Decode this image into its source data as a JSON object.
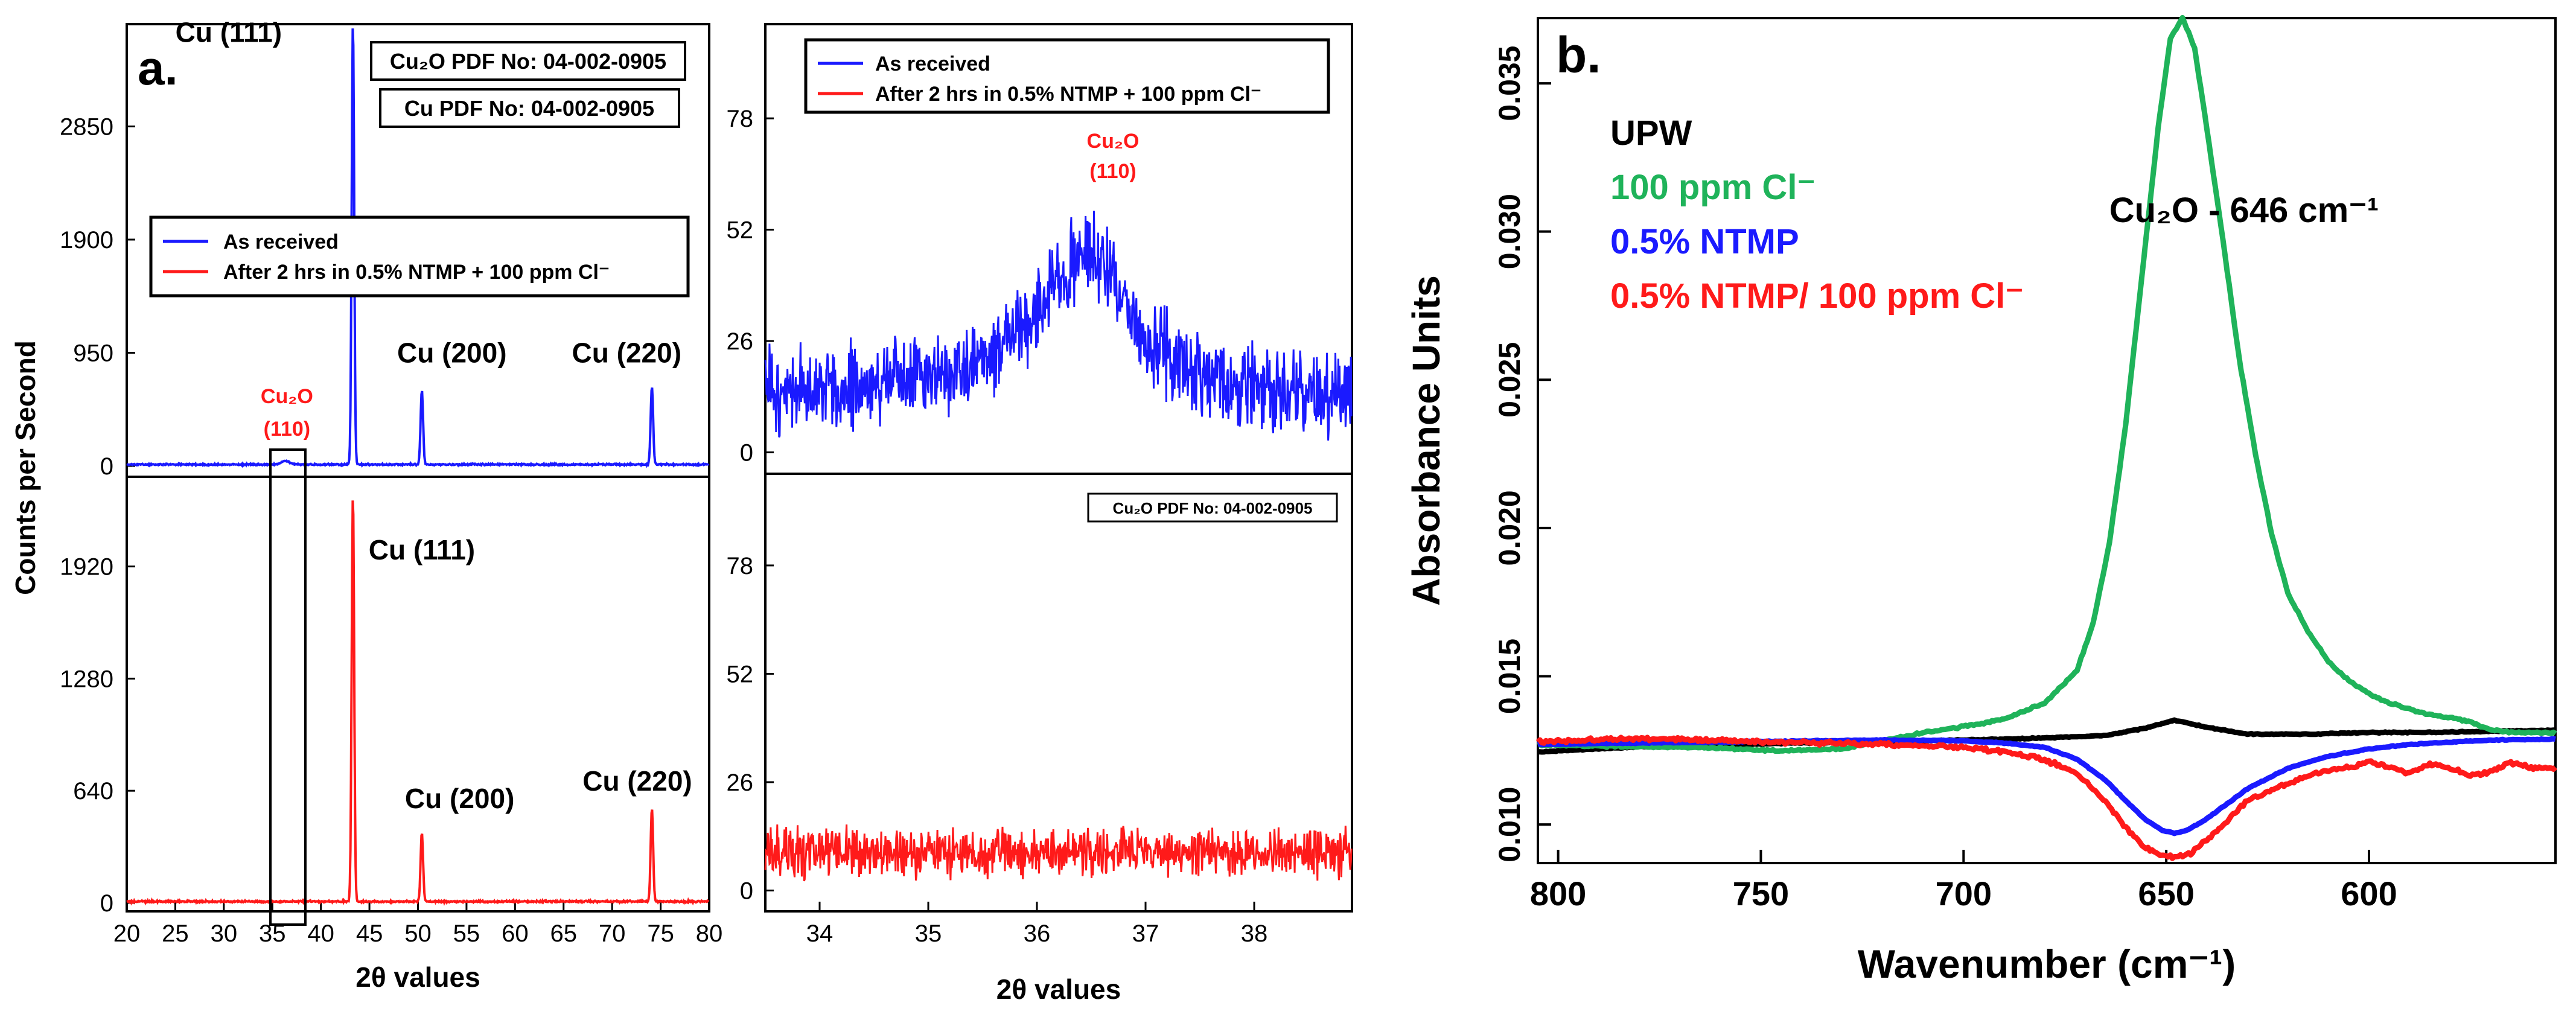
{
  "chart_data": [
    {
      "panel_label": "a.",
      "type": "line",
      "subplot": "full-scan-top",
      "x_range": [
        20,
        80
      ],
      "y_range": [
        0,
        3800
      ],
      "y_ticks": [
        0,
        950,
        1900,
        2850
      ],
      "y_label": "Counts per Second",
      "legend": {
        "position": "center-left",
        "entries": [
          "As received",
          "After 2 hrs in 0.5% NTMP + 100 ppm Cl⁻"
        ]
      },
      "reference_boxes": [
        "Cu₂O PDF No: 04-002-0905",
        "Cu PDF No: 04-002-0905"
      ],
      "annotations": [
        {
          "text": "Cu (111)",
          "x": 30.5,
          "y": 3560
        },
        {
          "text": "Cu (200)",
          "x": 53.5,
          "y": 870
        },
        {
          "text": "Cu (220)",
          "x": 71.5,
          "y": 870
        },
        {
          "text": "Cu₂O",
          "sub": "(110)",
          "x": 36.5,
          "y": 190
        }
      ],
      "series": [
        {
          "name": "As received",
          "color": "#1a1aff",
          "peaks": [
            {
              "x": 43.3,
              "y": 3700
            },
            {
              "x": 50.4,
              "y": 620
            },
            {
              "x": 74.1,
              "y": 650
            },
            {
              "x": 36.4,
              "y": 30
            }
          ]
        }
      ]
    },
    {
      "type": "line",
      "subplot": "full-scan-bottom",
      "x_range": [
        20,
        80
      ],
      "x_ticks": [
        20,
        25,
        30,
        35,
        40,
        45,
        50,
        55,
        60,
        65,
        70,
        75,
        80
      ],
      "x_label": "2θ values",
      "y_range": [
        0,
        2480
      ],
      "y_ticks": [
        0,
        640,
        1280,
        1920
      ],
      "annotations": [
        {
          "text": "Cu (111)",
          "x": 50.4,
          "y": 1960
        },
        {
          "text": "Cu (200)",
          "x": 54.3,
          "y": 540
        },
        {
          "text": "Cu (220)",
          "x": 72.6,
          "y": 640
        }
      ],
      "series": [
        {
          "name": "After 2 hrs in 0.5% NTMP + 100 ppm Cl⁻",
          "color": "#ff1a1a",
          "peaks": [
            {
              "x": 43.3,
              "y": 2320
            },
            {
              "x": 50.4,
              "y": 390
            },
            {
              "x": 74.1,
              "y": 530
            }
          ]
        }
      ]
    },
    {
      "type": "line",
      "subplot": "zoom-top",
      "x_range": [
        33.5,
        38.9
      ],
      "y_range": [
        -5,
        100
      ],
      "y_ticks": [
        0,
        26,
        52,
        78
      ],
      "legend": {
        "position": "top",
        "entries": [
          "As received",
          "After 2 hrs in 0.5% NTMP + 100 ppm Cl⁻"
        ]
      },
      "annotations": [
        {
          "text": "Cu₂O",
          "sub": "(110)",
          "x": 36.7,
          "y": 70
        }
      ],
      "series": [
        {
          "name": "As received",
          "color": "#1a1aff",
          "x": [
            33.5,
            34.0,
            34.5,
            35.0,
            35.5,
            35.9,
            36.2,
            36.4,
            36.6,
            36.8,
            37.0,
            37.5,
            38.0,
            38.5,
            38.9
          ],
          "y": [
            14,
            15,
            16,
            17,
            21,
            30,
            40,
            46,
            44,
            35,
            26,
            18,
            15,
            14,
            13
          ]
        }
      ]
    },
    {
      "type": "line",
      "subplot": "zoom-bottom",
      "x_range": [
        33.5,
        38.9
      ],
      "x_ticks": [
        34,
        35,
        36,
        37,
        38
      ],
      "x_label": "2θ values",
      "y_range": [
        -5,
        100
      ],
      "y_ticks": [
        0,
        26,
        52,
        78
      ],
      "reference_boxes": [
        "Cu₂O PDF No: 04-002-0905"
      ],
      "series": [
        {
          "name": "After 2 hrs in 0.5% NTMP + 100 ppm Cl⁻",
          "color": "#ff1a1a",
          "x": [
            33.5,
            34.5,
            35.5,
            36.5,
            37.5,
            38.9
          ],
          "y": [
            9,
            9,
            9,
            9,
            9,
            9
          ]
        }
      ]
    },
    {
      "panel_label": "b.",
      "type": "line",
      "x_label": "Wavenumber (cm⁻¹)",
      "x_range": [
        805,
        554
      ],
      "x_reversed": true,
      "x_ticks": [
        800,
        750,
        700,
        650,
        600
      ],
      "y_label": "Absorbance Units",
      "y_range": [
        0.0087,
        0.0372
      ],
      "y_ticks": [
        "0.010",
        "0.015",
        "0.020",
        "0.025",
        "0.030",
        "0.035"
      ],
      "annotation": "Cu₂O - 646 cm⁻¹",
      "legend": {
        "position": "top-left",
        "entries": [
          "UPW",
          "100 ppm Cl⁻",
          "0.5% NTMP",
          "0.5% NTMP/ 100 ppm Cl⁻"
        ]
      },
      "series": [
        {
          "name": "UPW",
          "color": "#000000",
          "x": [
            805,
            780,
            750,
            720,
            700,
            680,
            665,
            655,
            648,
            640,
            630,
            615,
            600,
            580,
            554
          ],
          "y": [
            0.01245,
            0.01262,
            0.01272,
            0.0128,
            0.01285,
            0.01292,
            0.013,
            0.01325,
            0.01352,
            0.01328,
            0.01305,
            0.01305,
            0.0131,
            0.01312,
            0.01318
          ]
        },
        {
          "name": "100 ppm Cl⁻",
          "color": "#1fb35a",
          "x": [
            805,
            780,
            760,
            745,
            730,
            710,
            700,
            690,
            680,
            672,
            668,
            664,
            660,
            656,
            652,
            649,
            646,
            643,
            640,
            636,
            632,
            628,
            624,
            620,
            615,
            610,
            605,
            600,
            595,
            590,
            585,
            580,
            575,
            570,
            565,
            554
          ],
          "y": [
            0.01268,
            0.01262,
            0.01258,
            0.01248,
            0.01255,
            0.0131,
            0.0133,
            0.01355,
            0.0141,
            0.0152,
            0.0168,
            0.0195,
            0.0235,
            0.0285,
            0.0335,
            0.0365,
            0.0372,
            0.0362,
            0.0335,
            0.0297,
            0.0257,
            0.0225,
            0.0198,
            0.0178,
            0.0165,
            0.0155,
            0.01485,
            0.0144,
            0.0141,
            0.0139,
            0.0137,
            0.0136,
            0.01345,
            0.0132,
            0.0131,
            0.0131
          ]
        },
        {
          "name": "0.5% NTMP",
          "color": "#1a1aff",
          "x": [
            805,
            780,
            750,
            720,
            700,
            690,
            680,
            672,
            665,
            660,
            655,
            651,
            648,
            645,
            641,
            636,
            630,
            620,
            610,
            600,
            590,
            580,
            570,
            554
          ],
          "y": [
            0.0127,
            0.01275,
            0.0128,
            0.01285,
            0.01282,
            0.01275,
            0.0126,
            0.0122,
            0.0115,
            0.0108,
            0.01015,
            0.0098,
            0.0097,
            0.0098,
            0.0101,
            0.0106,
            0.0112,
            0.0119,
            0.0123,
            0.01255,
            0.0127,
            0.01278,
            0.01285,
            0.01288
          ]
        },
        {
          "name": "0.5% NTMP/ 100 ppm Cl⁻",
          "color": "#ff1a1a",
          "x": [
            805,
            780,
            750,
            720,
            700,
            690,
            680,
            672,
            665,
            660,
            655,
            650,
            647,
            644,
            640,
            635,
            630,
            622,
            615,
            610,
            605,
            600,
            595,
            590,
            585,
            580,
            575,
            570,
            565,
            560,
            554
          ],
          "y": [
            0.0128,
            0.0129,
            0.0128,
            0.0127,
            0.0126,
            0.01245,
            0.0122,
            0.0117,
            0.0108,
            0.0099,
            0.0092,
            0.0089,
            0.0089,
            0.00905,
            0.0095,
            0.0101,
            0.0108,
            0.0113,
            0.0116,
            0.01185,
            0.0119,
            0.0121,
            0.01195,
            0.0117,
            0.01205,
            0.0119,
            0.01165,
            0.0118,
            0.0121,
            0.0119,
            0.0119
          ]
        }
      ]
    }
  ]
}
